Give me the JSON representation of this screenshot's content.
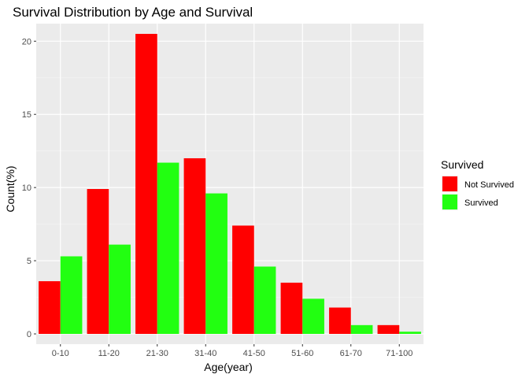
{
  "chart_data": {
    "type": "bar",
    "title": "Survival Distribution by Age and Survival",
    "xlabel": "Age(year)",
    "ylabel": "Count(%)",
    "categories": [
      "0-10",
      "11-20",
      "21-30",
      "31-40",
      "41-50",
      "51-60",
      "61-70",
      "71-100"
    ],
    "series": [
      {
        "name": "Not Survived",
        "color": "#ff0000",
        "values": [
          3.6,
          9.9,
          20.5,
          12.0,
          7.4,
          3.5,
          1.8,
          0.6
        ]
      },
      {
        "name": "Survived",
        "color": "#22ff11",
        "values": [
          5.3,
          6.1,
          11.7,
          9.6,
          4.6,
          2.4,
          0.6,
          0.15
        ]
      }
    ],
    "ylim": [
      -0.7,
      21.2
    ],
    "yticks": [
      0,
      5,
      10,
      15,
      20
    ],
    "grid": true,
    "legend": {
      "title": "Survived",
      "position": "right"
    }
  }
}
